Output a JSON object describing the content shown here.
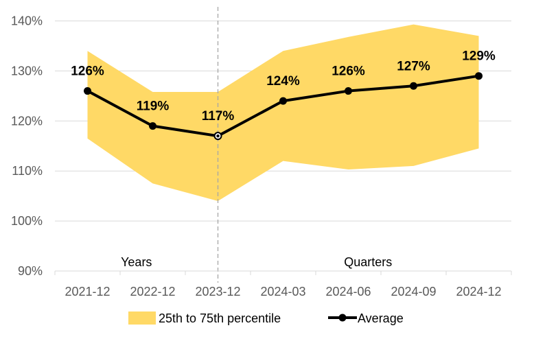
{
  "chart_data": {
    "type": "line",
    "categories": [
      "2021-12",
      "2022-12",
      "2023-12",
      "2024-03",
      "2024-06",
      "2024-09",
      "2024-12"
    ],
    "series": [
      {
        "name": "Average",
        "values": [
          126,
          119,
          117,
          124,
          126,
          127,
          129
        ],
        "labels": [
          "126%",
          "119%",
          "117%",
          "124%",
          "126%",
          "127%",
          "129%"
        ]
      }
    ],
    "band": {
      "name": "25th to 75th percentile",
      "lower": [
        116.5,
        107.5,
        104,
        112,
        110.3,
        111,
        114.5
      ],
      "upper": [
        134,
        125.8,
        125.8,
        134,
        136.8,
        139.3,
        137
      ]
    },
    "yticks": [
      "90%",
      "100%",
      "110%",
      "120%",
      "130%",
      "140%"
    ],
    "ytick_values": [
      90,
      100,
      110,
      120,
      130,
      140
    ],
    "ylim": [
      90,
      140
    ],
    "annotations": [
      "Years",
      "Quarters"
    ],
    "divider_after": "2023-12",
    "grid": true,
    "legend": "bottom",
    "colors": {
      "band": "#FFD966",
      "line": "#000000",
      "grid": "#D9D9D9",
      "divider": "#A6A6A6"
    }
  }
}
